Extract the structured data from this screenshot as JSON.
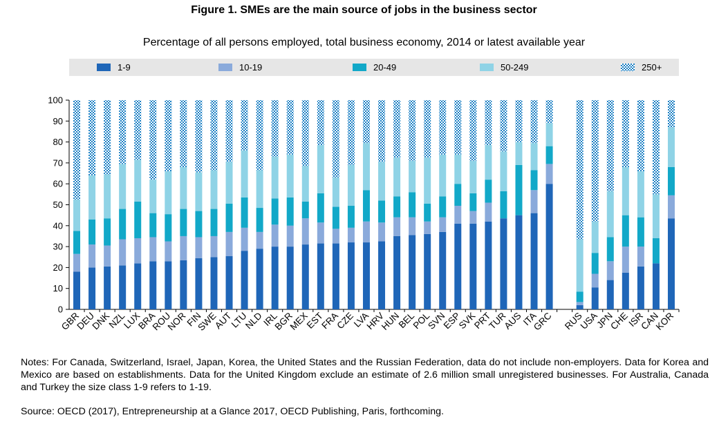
{
  "title": "Figure 1.  SMEs are the main source of jobs in the business sector",
  "subtitle": "Percentage of all persons employed, total business economy, 2014 or latest available year",
  "notes": "Notes: For Canada, Switzerland, Israel, Japan, Korea, the United States and the Russian Federation, data do not include non-employers. Data for Korea and Mexico are based on establishments. Data for the United Kingdom exclude an estimate of 2.6 million small unregistered businesses. For Australia, Canada and Turkey the size class 1-9 refers to 1-19.",
  "source": "Source: OECD (2017), Entrepreneurship at a Glance 2017, OECD Publishing, Paris, forthcoming.",
  "colors": {
    "s1_9": "#1f66b8",
    "s10_19": "#8aaadb",
    "s20_49": "#12a8c8",
    "s50_249": "#8fd3e6",
    "s250": "#1a7fc4",
    "legend_bg": "#e6e6e6"
  },
  "chart_data": {
    "type": "bar",
    "stacked": true,
    "title": "SMEs are the main source of jobs in the business sector",
    "ylim": [
      0,
      100
    ],
    "yticks": [
      0,
      10,
      20,
      30,
      40,
      50,
      60,
      70,
      80,
      90,
      100
    ],
    "legend_position": "top",
    "categories": [
      "GBR",
      "DEU",
      "DNK",
      "NZL",
      "LUX",
      "BRA",
      "ROU",
      "NOR",
      "FIN",
      "SWE",
      "AUT",
      "LTU",
      "NLD",
      "IRL",
      "BGR",
      "MEX",
      "EST",
      "FRA",
      "CZE",
      "LVA",
      "HRV",
      "HUN",
      "BEL",
      "POL",
      "SVN",
      "ESP",
      "SVK",
      "PRT",
      "TUR",
      "AUS",
      "ITA",
      "GRC",
      "",
      "RUS",
      "USA",
      "JPN",
      "CHE",
      "ISR",
      "CAN",
      "KOR"
    ],
    "series": [
      {
        "name": "1-9",
        "values": [
          18,
          20,
          20.5,
          21,
          22,
          23,
          23,
          23.5,
          24.5,
          25,
          25.5,
          28,
          29,
          30,
          30,
          31,
          31.5,
          31.5,
          32,
          32,
          32.5,
          35,
          35.5,
          36,
          37,
          41,
          41,
          42,
          43.5,
          45,
          46,
          60,
          null,
          2,
          10.5,
          14,
          17.5,
          20.5,
          22,
          43.5
        ]
      },
      {
        "name": "10-19",
        "values": [
          8.5,
          11,
          10,
          12.5,
          12,
          11.5,
          9.5,
          11.5,
          10,
          10,
          11.5,
          11,
          8,
          10.5,
          10,
          12.5,
          10,
          7,
          7,
          10,
          9,
          9,
          8.5,
          6,
          7,
          8.5,
          6,
          9,
          null,
          null,
          11,
          9.5,
          null,
          1.5,
          6.5,
          9,
          12.5,
          9.5,
          null,
          11
        ]
      },
      {
        "name": "20-49",
        "values": [
          11,
          12,
          13,
          14.5,
          17.5,
          11.5,
          13,
          13,
          12.5,
          13,
          13.5,
          14.5,
          11.5,
          12.5,
          13.5,
          8,
          14,
          10.5,
          10.5,
          15,
          10.5,
          10,
          12,
          8.5,
          10,
          10.5,
          8.5,
          11,
          13,
          24,
          9.5,
          8.5,
          null,
          5,
          10,
          11.5,
          15,
          14,
          12,
          13.5
        ]
      },
      {
        "name": "50-249",
        "values": [
          15,
          21,
          21,
          21.5,
          20,
          16,
          20.5,
          20,
          18.5,
          18.5,
          20,
          22.5,
          18,
          20,
          20.5,
          17,
          23,
          14,
          19.5,
          22.5,
          18.5,
          18.5,
          15,
          22,
          20,
          14,
          15.5,
          16.5,
          19,
          11,
          13,
          11,
          null,
          25,
          15,
          22,
          23,
          22,
          21,
          19
        ]
      },
      {
        "name": "250+",
        "values": [
          47.5,
          36,
          35.5,
          30.5,
          28.5,
          38,
          34,
          32,
          34.5,
          33.5,
          29.5,
          24,
          33.5,
          27,
          26,
          31.5,
          21.5,
          37,
          31,
          20.5,
          29.5,
          27.5,
          29,
          27.5,
          26,
          26,
          29,
          21.5,
          24.5,
          20,
          20.5,
          11,
          null,
          66.5,
          58,
          43.5,
          32,
          34,
          45,
          13
        ]
      }
    ]
  }
}
